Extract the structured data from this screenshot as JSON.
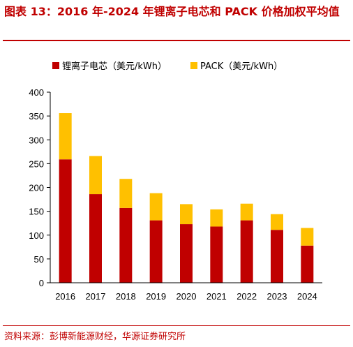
{
  "header": {
    "title": "图表 13：2016 年-2024 年锂离子电芯和 PACK 价格加权平均值"
  },
  "footer": {
    "source": "资料来源：彭博新能源财经，华源证券研究所"
  },
  "chart_data": {
    "type": "bar",
    "stacked": true,
    "categories": [
      "2016",
      "2017",
      "2018",
      "2019",
      "2020",
      "2021",
      "2022",
      "2023",
      "2024"
    ],
    "series": [
      {
        "name": "锂离子电芯（美元/kWh）",
        "color": "#c00000",
        "values": [
          259,
          186,
          157,
          131,
          123,
          118,
          131,
          111,
          78
        ]
      },
      {
        "name": "PACK（美元/kWh）",
        "color": "#ffc000",
        "values": [
          97,
          80,
          61,
          57,
          42,
          36,
          35,
          33,
          37
        ]
      }
    ],
    "ylim": [
      0,
      400
    ],
    "yticks": [
      0,
      50,
      100,
      150,
      200,
      250,
      300,
      350,
      400
    ],
    "legend_position": "top",
    "grid": false
  }
}
